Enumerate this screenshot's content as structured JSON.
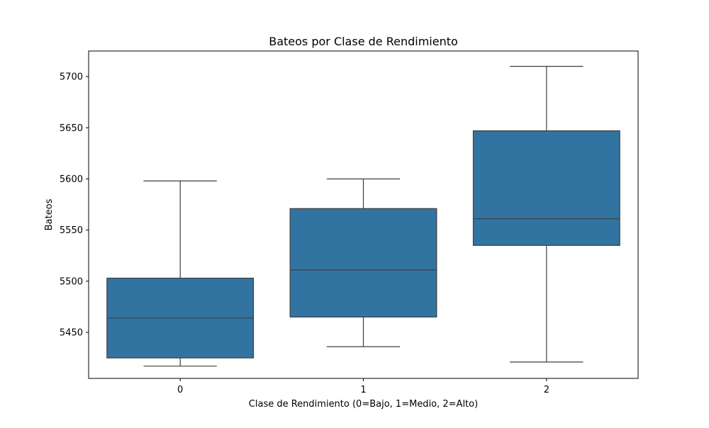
{
  "chart_data": {
    "type": "box",
    "title": "Bateos por Clase de Rendimiento",
    "xlabel": "Clase de Rendimiento (0=Bajo, 1=Medio, 2=Alto)",
    "ylabel": "Bateos",
    "categories": [
      "0",
      "1",
      "2"
    ],
    "boxes": [
      {
        "category": "0",
        "whisker_low": 5417,
        "q1": 5425,
        "median": 5464,
        "q3": 5503,
        "whisker_high": 5598
      },
      {
        "category": "1",
        "whisker_low": 5436,
        "q1": 5465,
        "median": 5511,
        "q3": 5571,
        "whisker_high": 5600
      },
      {
        "category": "2",
        "whisker_low": 5421,
        "q1": 5535,
        "median": 5561,
        "q3": 5647,
        "whisker_high": 5710
      }
    ],
    "ylim": [
      5405,
      5725
    ],
    "yticks": [
      5450,
      5500,
      5550,
      5600,
      5650,
      5700
    ],
    "grid": false,
    "legend": "none",
    "box_color": "#3274a1",
    "line_color": "#3f3f3f"
  }
}
